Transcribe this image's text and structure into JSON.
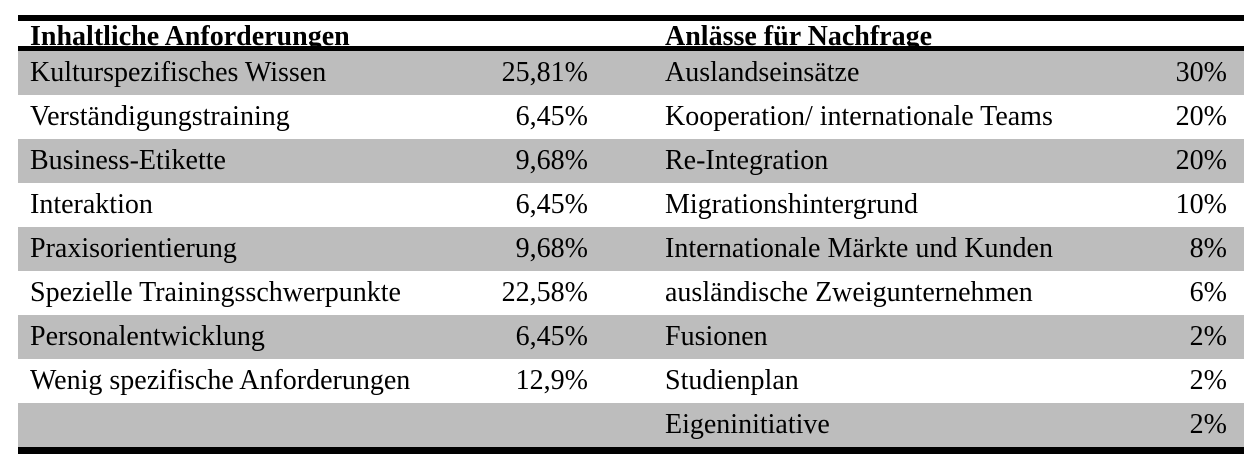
{
  "table": {
    "headers": {
      "left": "Inhaltliche Anforderungen",
      "right": "Anlässe für Nachfrage"
    },
    "rows": [
      {
        "left_label": "Kulturspezifisches Wissen",
        "left_value": "25,81%",
        "right_label": "Auslandseinsätze",
        "right_value": "30%"
      },
      {
        "left_label": "Verständigungstraining",
        "left_value": "6,45%",
        "right_label": "Kooperation/ internationale Teams",
        "right_value": "20%"
      },
      {
        "left_label": "Business-Etikette",
        "left_value": "9,68%",
        "right_label": "Re-Integration",
        "right_value": "20%"
      },
      {
        "left_label": "Interaktion",
        "left_value": "6,45%",
        "right_label": "Migrationshintergrund",
        "right_value": "10%"
      },
      {
        "left_label": "Praxisorientierung",
        "left_value": "9,68%",
        "right_label": "Internationale Märkte und Kunden",
        "right_value": "8%"
      },
      {
        "left_label": "Spezielle Trainingsschwerpunkte",
        "left_value": "22,58%",
        "right_label": "ausländische Zweigunternehmen",
        "right_value": "6%"
      },
      {
        "left_label": "Personalentwicklung",
        "left_value": "6,45%",
        "right_label": "Fusionen",
        "right_value": "2%"
      },
      {
        "left_label": "Wenig spezifische Anforderungen",
        "left_value": "12,9%",
        "right_label": "Studienplan",
        "right_value": "2%"
      },
      {
        "left_label": "",
        "left_value": "",
        "right_label": "Eigeninitiative",
        "right_value": "2%"
      }
    ],
    "colors": {
      "row_shade": "#bdbdbd",
      "border": "#000000"
    }
  }
}
